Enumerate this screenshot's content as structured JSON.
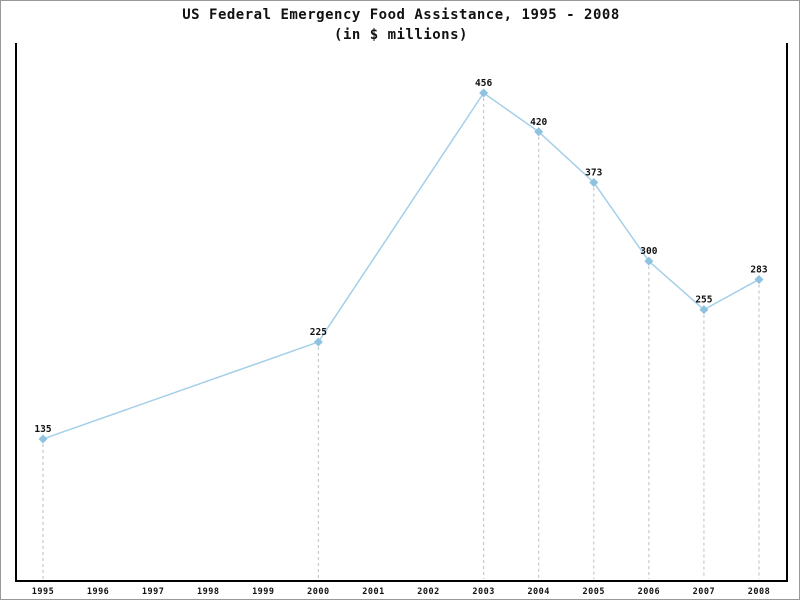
{
  "chart_data": {
    "type": "line",
    "title": "US Federal Emergency Food Assistance, 1995 - 2008",
    "subtitle": "(in $ millions)",
    "xlabel": "",
    "ylabel": "",
    "categories": [
      "1995",
      "1996",
      "1997",
      "1998",
      "1999",
      "2000",
      "2001",
      "2002",
      "2003",
      "2004",
      "2005",
      "2006",
      "2007",
      "2008"
    ],
    "x": [
      1995,
      2000,
      2003,
      2004,
      2005,
      2006,
      2007,
      2008
    ],
    "values": [
      135,
      225,
      456,
      420,
      373,
      300,
      255,
      283
    ],
    "data_labels": [
      "135",
      "225",
      "456",
      "420",
      "373",
      "300",
      "255",
      "283"
    ],
    "ymax_value": 456,
    "legend": "none",
    "grid": "dashed vertical droplines at data points only",
    "marker": "diamond",
    "colors": {
      "line": "#a5cfe9",
      "marker": "#8fc2e0",
      "dropline": "#c8c8c8",
      "axis": "#000000",
      "text": "#111111",
      "page_border": "#999999",
      "background": "#ffffff"
    }
  }
}
